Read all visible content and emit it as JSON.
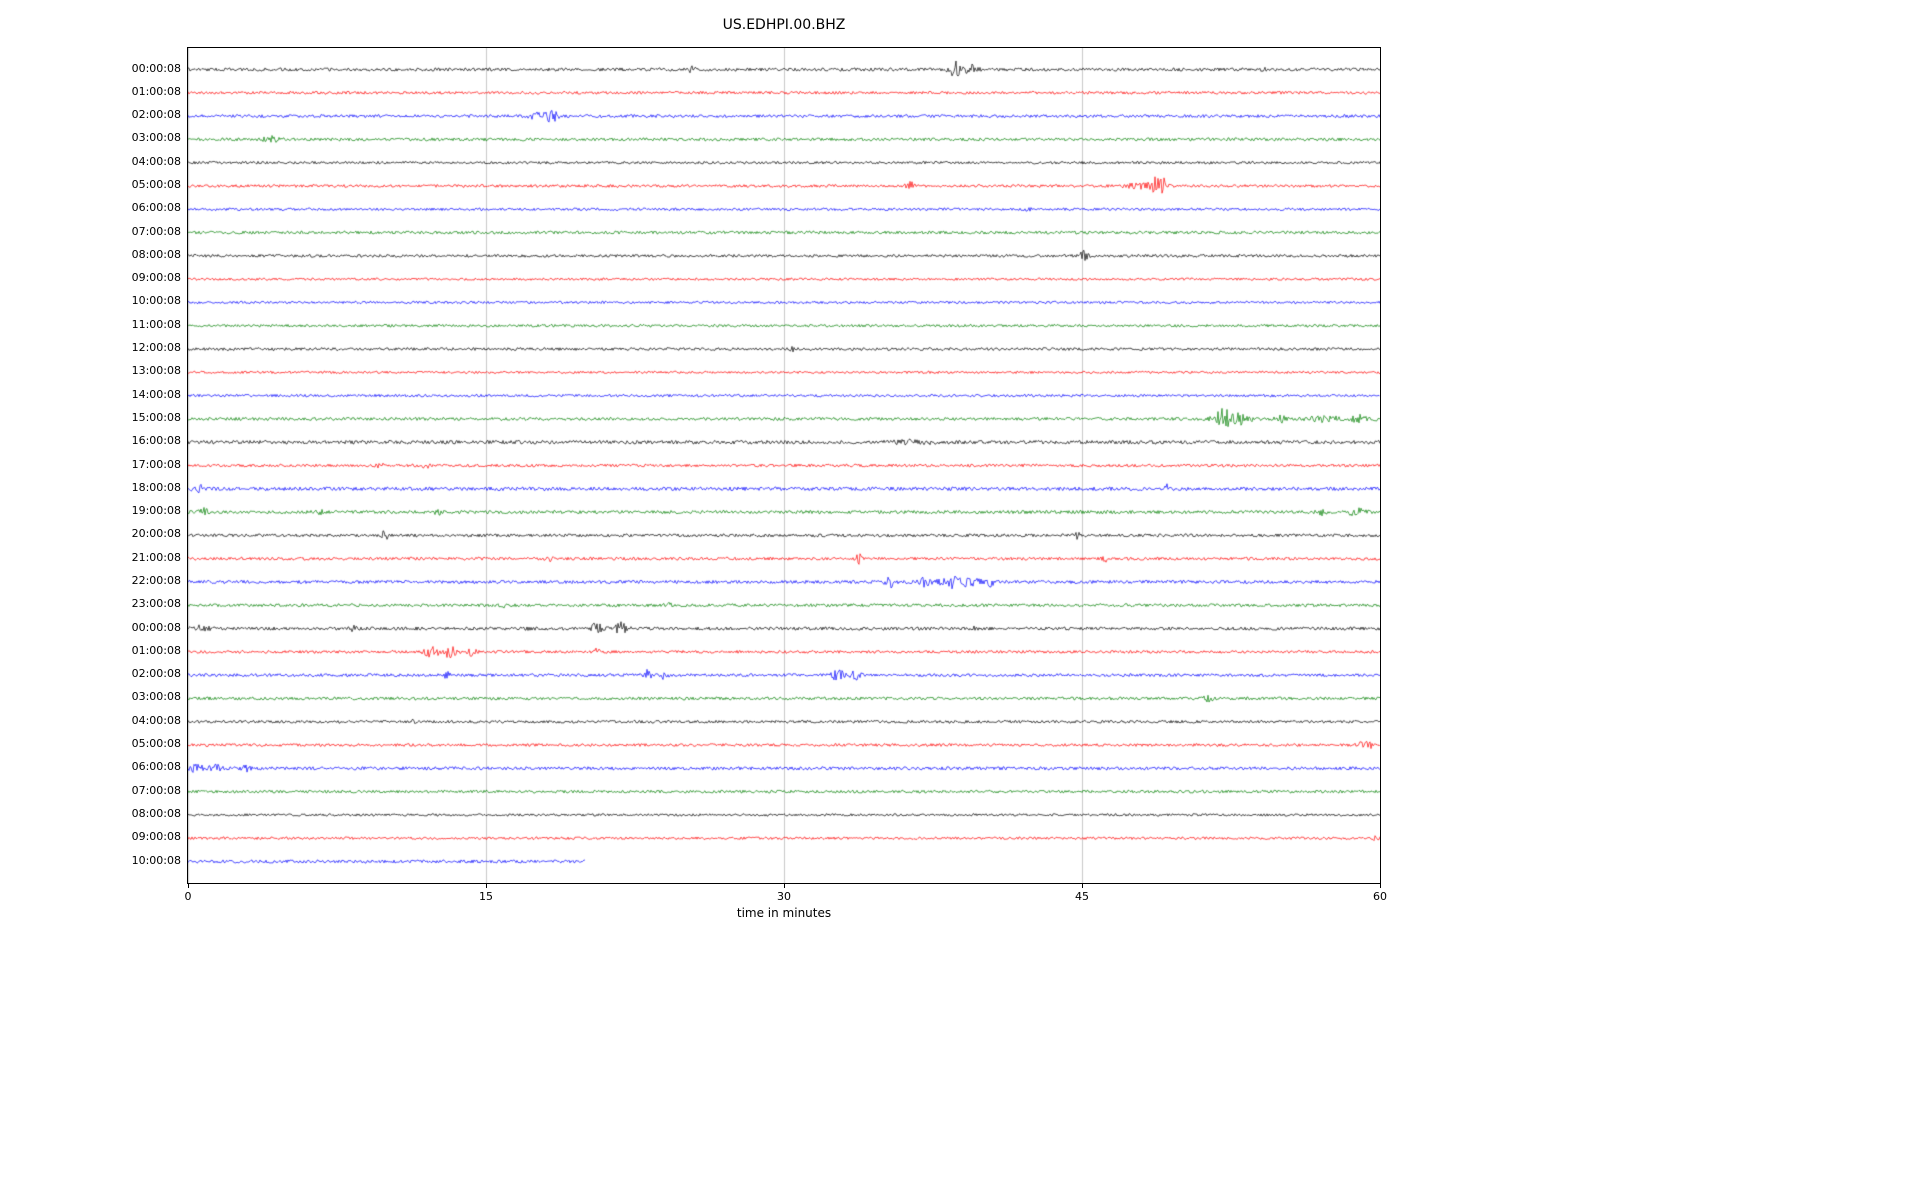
{
  "title": "US.EDHPI.00.BHZ",
  "chart_data": {
    "type": "line",
    "subtype": "helicorder-seismogram",
    "title": "US.EDHPI.00.BHZ",
    "xlabel": "time in minutes",
    "x_ticks": [
      0,
      15,
      30,
      45,
      60
    ],
    "x_range": [
      0,
      60
    ],
    "grid": "vertical-only",
    "grid_color": "#c9c9c9",
    "colors_cycle": [
      "#000000",
      "#ff0000",
      "#0000ff",
      "#008000"
    ],
    "rows": [
      {
        "label": "00:00:08",
        "color": "#000000",
        "noise": 1.6,
        "end": 60,
        "events": [
          [
            25.3,
            2.5,
            0.4
          ],
          [
            38.7,
            7,
            0.8
          ],
          [
            39.5,
            5,
            0.5
          ],
          [
            54.1,
            2.5,
            0.2
          ]
        ]
      },
      {
        "label": "01:00:08",
        "color": "#ff0000",
        "noise": 1.4,
        "end": 60,
        "events": []
      },
      {
        "label": "02:00:08",
        "color": "#0000ff",
        "noise": 1.5,
        "end": 60,
        "events": [
          [
            17.6,
            3,
            0.8
          ],
          [
            18.3,
            6,
            0.6
          ]
        ]
      },
      {
        "label": "03:00:08",
        "color": "#008000",
        "noise": 1.5,
        "end": 60,
        "events": [
          [
            4.2,
            2.5,
            0.8
          ]
        ]
      },
      {
        "label": "04:00:08",
        "color": "#000000",
        "noise": 1.3,
        "end": 60,
        "events": []
      },
      {
        "label": "05:00:08",
        "color": "#ff0000",
        "noise": 1.4,
        "end": 60,
        "events": [
          [
            36.4,
            3.5,
            0.5
          ],
          [
            47.9,
            3,
            1.2
          ],
          [
            48.9,
            11,
            0.7
          ]
        ]
      },
      {
        "label": "06:00:08",
        "color": "#0000ff",
        "noise": 1.3,
        "end": 60,
        "events": [
          [
            42.3,
            2.5,
            0.2
          ]
        ]
      },
      {
        "label": "07:00:08",
        "color": "#008000",
        "noise": 1.5,
        "end": 60,
        "events": []
      },
      {
        "label": "08:00:08",
        "color": "#000000",
        "noise": 1.4,
        "end": 60,
        "events": [
          [
            45.1,
            4.5,
            0.4
          ]
        ]
      },
      {
        "label": "09:00:08",
        "color": "#ff0000",
        "noise": 1.2,
        "end": 60,
        "events": []
      },
      {
        "label": "10:00:08",
        "color": "#0000ff",
        "noise": 1.2,
        "end": 60,
        "events": []
      },
      {
        "label": "11:00:08",
        "color": "#008000",
        "noise": 1.3,
        "end": 60,
        "events": []
      },
      {
        "label": "12:00:08",
        "color": "#000000",
        "noise": 1.4,
        "end": 60,
        "events": [
          [
            30.4,
            2,
            0.2
          ]
        ]
      },
      {
        "label": "13:00:08",
        "color": "#ff0000",
        "noise": 1.2,
        "end": 60,
        "events": []
      },
      {
        "label": "14:00:08",
        "color": "#0000ff",
        "noise": 1.3,
        "end": 60,
        "events": []
      },
      {
        "label": "15:00:08",
        "color": "#008000",
        "noise": 1.5,
        "end": 60,
        "events": [
          [
            52.0,
            9,
            1.0
          ],
          [
            52.9,
            5,
            1.2
          ],
          [
            55.0,
            3,
            0.6
          ],
          [
            57.2,
            3,
            1.5
          ],
          [
            59.0,
            3.5,
            1.2
          ]
        ]
      },
      {
        "label": "16:00:08",
        "color": "#000000",
        "noise": 1.8,
        "end": 60,
        "events": [
          [
            36.5,
            1.5,
            2.0
          ]
        ]
      },
      {
        "label": "17:00:08",
        "color": "#ff0000",
        "noise": 1.4,
        "end": 60,
        "events": [
          [
            9.7,
            2.5,
            0.4
          ],
          [
            12.0,
            3.5,
            0.5
          ]
        ]
      },
      {
        "label": "18:00:08",
        "color": "#0000ff",
        "noise": 1.8,
        "end": 60,
        "events": [
          [
            0.5,
            3.5,
            0.6
          ],
          [
            49.2,
            4.5,
            0.3
          ]
        ]
      },
      {
        "label": "19:00:08",
        "color": "#008000",
        "noise": 1.6,
        "end": 60,
        "events": [
          [
            0.8,
            3.5,
            0.5
          ],
          [
            6.6,
            2.5,
            0.4
          ],
          [
            12.6,
            3.5,
            0.4
          ],
          [
            57.0,
            2.5,
            0.5
          ],
          [
            58.8,
            3.5,
            0.8
          ]
        ]
      },
      {
        "label": "20:00:08",
        "color": "#000000",
        "noise": 1.5,
        "end": 60,
        "events": [
          [
            9.9,
            4.5,
            0.3
          ],
          [
            44.8,
            3,
            0.3
          ]
        ]
      },
      {
        "label": "21:00:08",
        "color": "#ff0000",
        "noise": 1.5,
        "end": 60,
        "events": [
          [
            18.2,
            2,
            0.4
          ],
          [
            33.8,
            4.5,
            0.4
          ],
          [
            46.2,
            3,
            0.3
          ]
        ]
      },
      {
        "label": "22:00:08",
        "color": "#0000ff",
        "noise": 1.6,
        "end": 60,
        "events": [
          [
            35.3,
            5,
            0.5
          ],
          [
            37.0,
            4,
            0.8
          ],
          [
            38.5,
            5.5,
            1.2
          ],
          [
            39.5,
            4.5,
            0.8
          ],
          [
            40.4,
            4,
            0.4
          ]
        ]
      },
      {
        "label": "23:00:08",
        "color": "#008000",
        "noise": 1.5,
        "end": 60,
        "events": [
          [
            15.9,
            2.5,
            0.5
          ],
          [
            24.1,
            2,
            0.5
          ]
        ]
      },
      {
        "label": "00:00:08",
        "color": "#000000",
        "noise": 1.6,
        "end": 60,
        "events": [
          [
            0.6,
            3,
            0.8
          ],
          [
            8.3,
            2.5,
            0.3
          ],
          [
            17.3,
            2.5,
            0.3
          ],
          [
            20.6,
            6.5,
            0.5
          ],
          [
            21.8,
            5.5,
            0.6
          ],
          [
            39.6,
            2.5,
            0.2
          ]
        ]
      },
      {
        "label": "01:00:08",
        "color": "#ff0000",
        "noise": 1.4,
        "end": 60,
        "events": [
          [
            12.3,
            5,
            0.8
          ],
          [
            13.2,
            5.5,
            0.7
          ],
          [
            14.3,
            4,
            0.4
          ],
          [
            20.6,
            3.5,
            0.3
          ]
        ]
      },
      {
        "label": "02:00:08",
        "color": "#0000ff",
        "noise": 1.5,
        "end": 60,
        "events": [
          [
            13.0,
            3,
            0.4
          ],
          [
            23.0,
            5,
            0.7
          ],
          [
            23.9,
            3.5,
            0.5
          ],
          [
            32.7,
            5,
            0.7
          ],
          [
            33.6,
            4.5,
            0.6
          ]
        ]
      },
      {
        "label": "03:00:08",
        "color": "#008000",
        "noise": 1.5,
        "end": 60,
        "events": [
          [
            51.3,
            2.5,
            0.5
          ]
        ]
      },
      {
        "label": "04:00:08",
        "color": "#000000",
        "noise": 1.4,
        "end": 60,
        "events": [
          [
            11.3,
            2,
            0.3
          ]
        ]
      },
      {
        "label": "05:00:08",
        "color": "#ff0000",
        "noise": 1.4,
        "end": 60,
        "events": [
          [
            59.3,
            5,
            0.7
          ]
        ]
      },
      {
        "label": "06:00:08",
        "color": "#0000ff",
        "noise": 1.6,
        "end": 60,
        "events": [
          [
            0.5,
            4,
            0.8
          ],
          [
            1.4,
            3.5,
            0.5
          ],
          [
            2.9,
            3,
            0.4
          ]
        ]
      },
      {
        "label": "07:00:08",
        "color": "#008000",
        "noise": 1.4,
        "end": 60,
        "events": []
      },
      {
        "label": "08:00:08",
        "color": "#000000",
        "noise": 1.2,
        "end": 60,
        "events": []
      },
      {
        "label": "09:00:08",
        "color": "#ff0000",
        "noise": 1.3,
        "end": 60,
        "events": [
          [
            59.8,
            2,
            0.3
          ]
        ]
      },
      {
        "label": "10:00:08",
        "color": "#0000ff",
        "noise": 1.6,
        "end": 20,
        "events": []
      }
    ]
  }
}
